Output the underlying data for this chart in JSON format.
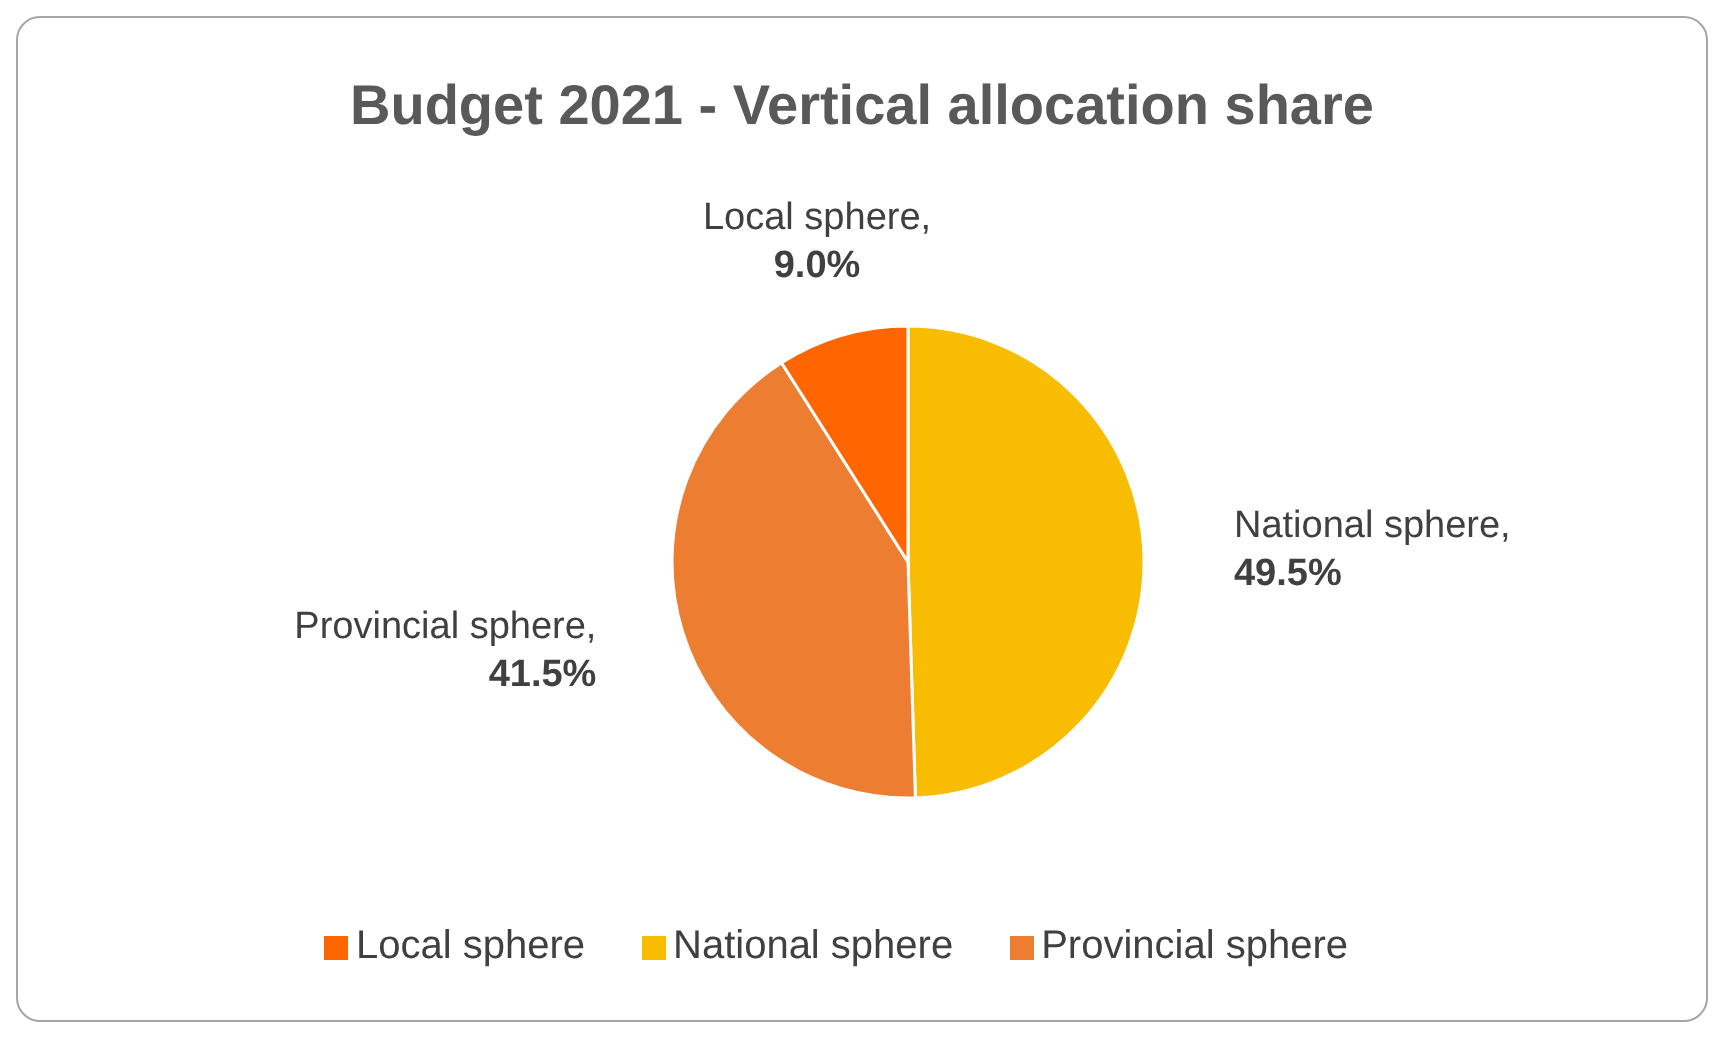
{
  "chart_data": {
    "type": "pie",
    "title": "Budget 2021 - Vertical allocation share",
    "categories": [
      "National sphere",
      "Provincial sphere",
      "Local sphere"
    ],
    "values": [
      49.5,
      41.5,
      9.0
    ],
    "value_labels": [
      ", 49.5%",
      ", 41.5%",
      ", 9.0%"
    ],
    "colors": [
      "#f8bc00",
      "#ed7d31",
      "#ff6600"
    ],
    "legend": "bottom"
  }
}
